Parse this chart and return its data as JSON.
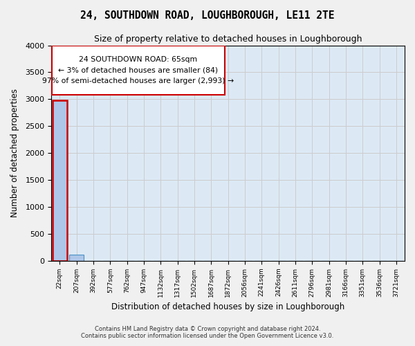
{
  "title": "24, SOUTHDOWN ROAD, LOUGHBOROUGH, LE11 2TE",
  "subtitle": "Size of property relative to detached houses in Loughborough",
  "xlabel": "Distribution of detached houses by size in Loughborough",
  "ylabel": "Number of detached properties",
  "footer_line1": "Contains HM Land Registry data © Crown copyright and database right 2024.",
  "footer_line2": "Contains public sector information licensed under the Open Government Licence v3.0.",
  "bin_labels": [
    "22sqm",
    "207sqm",
    "392sqm",
    "577sqm",
    "762sqm",
    "947sqm",
    "1132sqm",
    "1317sqm",
    "1502sqm",
    "1687sqm",
    "1872sqm",
    "2056sqm",
    "2241sqm",
    "2426sqm",
    "2611sqm",
    "2796sqm",
    "2981sqm",
    "3166sqm",
    "3351sqm",
    "3536sqm",
    "3721sqm"
  ],
  "bar_heights": [
    2980,
    110,
    0,
    0,
    0,
    0,
    0,
    0,
    0,
    0,
    0,
    0,
    0,
    0,
    0,
    0,
    0,
    0,
    0,
    0,
    0
  ],
  "bar_color": "#aec6e8",
  "bar_edge_color": "#4a90c4",
  "ylim": [
    0,
    4000
  ],
  "yticks": [
    0,
    500,
    1000,
    1500,
    2000,
    2500,
    3000,
    3500,
    4000
  ],
  "annotation_box_text": "24 SOUTHDOWN ROAD: 65sqm\n← 3% of detached houses are smaller (84)\n97% of semi-detached houses are larger (2,993) →",
  "subject_bar_index": 0,
  "subject_bar_color_edge": "#cc0000",
  "grid_color": "#cccccc",
  "plot_bg_color": "#dce9f5"
}
